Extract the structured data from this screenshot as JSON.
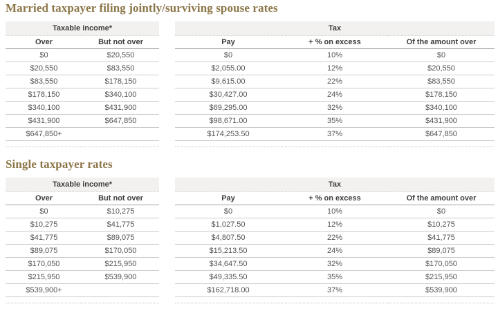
{
  "colors": {
    "title": "#8c7648",
    "group_header_bg": "#f2f1ef",
    "header_text": "#3d3d3d",
    "cell_text": "#525252"
  },
  "sections": [
    {
      "title": "Married taxpayer filing jointly/surviving spouse rates",
      "income_table": {
        "group_header": "Taxable income*",
        "columns": [
          "Over",
          "But not over"
        ],
        "rows": [
          [
            "$0",
            "$20,550"
          ],
          [
            "$20,550",
            "$83,550"
          ],
          [
            "$83,550",
            "$178,150"
          ],
          [
            "$178,150",
            "$340,100"
          ],
          [
            "$340,100",
            "$431,900"
          ],
          [
            "$431,900",
            "$647,850"
          ],
          [
            "$647,850+",
            ""
          ]
        ]
      },
      "tax_table": {
        "group_header": "Tax",
        "columns": [
          "Pay",
          "+ % on excess",
          "Of the amount over"
        ],
        "rows": [
          [
            "$0",
            "10%",
            "$0"
          ],
          [
            "$2,055.00",
            "12%",
            "$20,550"
          ],
          [
            "$9,615.00",
            "22%",
            "$83,550"
          ],
          [
            "$30,427.00",
            "24%",
            "$178,150"
          ],
          [
            "$69,295.00",
            "32%",
            "$340,100"
          ],
          [
            "$98,671.00",
            "35%",
            "$431,900"
          ],
          [
            "$174,253.50",
            "37%",
            "$647,850"
          ]
        ]
      }
    },
    {
      "title": "Single taxpayer rates",
      "income_table": {
        "group_header": "Taxable income*",
        "columns": [
          "Over",
          "But not over"
        ],
        "rows": [
          [
            "$0",
            "$10,275"
          ],
          [
            "$10,275",
            "$41,775"
          ],
          [
            "$41,775",
            "$89,075"
          ],
          [
            "$89,075",
            "$170,050"
          ],
          [
            "$170,050",
            "$215,950"
          ],
          [
            "$215,950",
            "$539,900"
          ],
          [
            "$539,900+",
            ""
          ]
        ]
      },
      "tax_table": {
        "group_header": "Tax",
        "columns": [
          "Pay",
          "+ % on excess",
          "Of the amount over"
        ],
        "rows": [
          [
            "$0",
            "10%",
            "$0"
          ],
          [
            "$1,027.50",
            "12%",
            "$10,275"
          ],
          [
            "$4,807.50",
            "22%",
            "$41,775"
          ],
          [
            "$15,213.50",
            "24%",
            "$89,075"
          ],
          [
            "$34,647.50",
            "32%",
            "$170,050"
          ],
          [
            "$49,335.50",
            "35%",
            "$215,950"
          ],
          [
            "$162,718.00",
            "37%",
            "$539,900"
          ]
        ]
      }
    }
  ]
}
